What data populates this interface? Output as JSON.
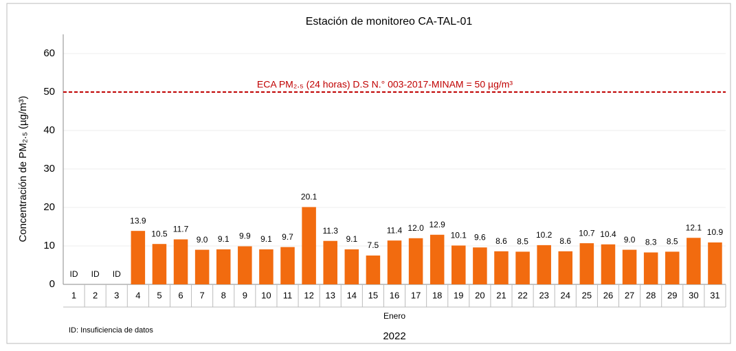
{
  "chart_data": {
    "type": "bar",
    "title": "Estación de monitoreo CA-TAL-01",
    "y_label": "Concentración de PM₂.₅ (µg/m³)",
    "x_label": "Enero",
    "x_label_2": "2022",
    "note": "ID: Insuficiencia de datos",
    "categories": [
      "1",
      "2",
      "3",
      "4",
      "5",
      "6",
      "7",
      "8",
      "9",
      "10",
      "11",
      "12",
      "13",
      "14",
      "15",
      "16",
      "17",
      "18",
      "19",
      "20",
      "21",
      "22",
      "23",
      "24",
      "25",
      "26",
      "27",
      "28",
      "29",
      "30",
      "31"
    ],
    "values": [
      null,
      null,
      null,
      13.9,
      10.5,
      11.7,
      9.0,
      9.1,
      9.9,
      9.1,
      9.7,
      20.1,
      11.3,
      9.1,
      7.5,
      11.4,
      12.0,
      12.9,
      10.1,
      9.6,
      8.6,
      8.5,
      10.2,
      8.6,
      10.7,
      10.4,
      9.0,
      8.3,
      8.5,
      12.1,
      10.9
    ],
    "value_labels": [
      "ID",
      "ID",
      "ID",
      "13.9",
      "10.5",
      "11.7",
      "9.0",
      "9.1",
      "9.9",
      "9.1",
      "9.7",
      "20.1",
      "11.3",
      "9.1",
      "7.5",
      "11.4",
      "12.0",
      "12.9",
      "10.1",
      "9.6",
      "8.6",
      "8.5",
      "10.2",
      "8.6",
      "10.7",
      "10.4",
      "9.0",
      "8.3",
      "8.5",
      "12.1",
      "10.9"
    ],
    "color": "#f26b0f",
    "reference_line": {
      "value": 50,
      "label": "ECA PM₂.₅ (24 horas) D.S N.° 003-2017-MINAM = 50 µg/m³",
      "color": "#c00000"
    },
    "ylim": [
      0,
      65
    ],
    "yticks": [
      0,
      10,
      20,
      30,
      40,
      50,
      60
    ],
    "grid": true
  }
}
